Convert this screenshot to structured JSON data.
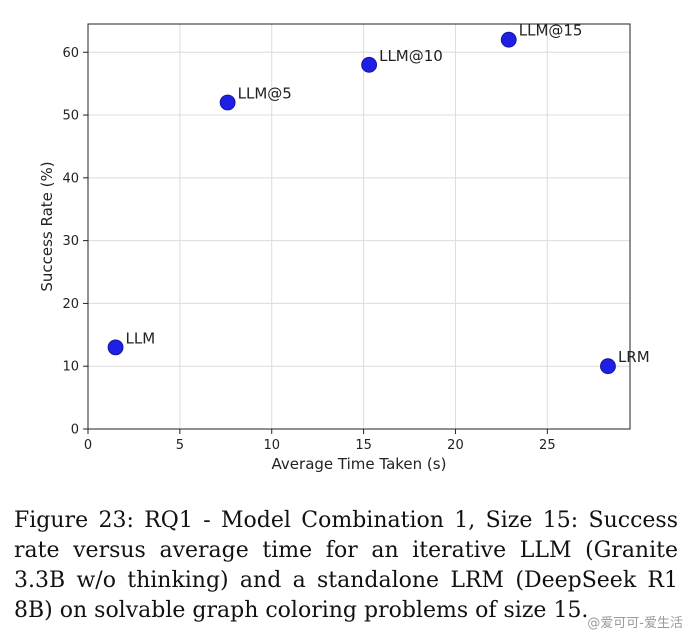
{
  "chart_data": {
    "type": "scatter",
    "title": "",
    "xlabel": "Average Time Taken (s)",
    "ylabel": "Success Rate (%)",
    "xlim": [
      0,
      29.5
    ],
    "ylim": [
      0,
      64.5
    ],
    "x_ticks": [
      0,
      5,
      10,
      15,
      20,
      25
    ],
    "y_ticks": [
      0,
      10,
      20,
      30,
      40,
      50,
      60
    ],
    "grid": true,
    "marker_color": "#1f1fe6",
    "points": [
      {
        "label": "LLM",
        "x": 1.5,
        "y": 13
      },
      {
        "label": "LLM@5",
        "x": 7.6,
        "y": 52
      },
      {
        "label": "LLM@10",
        "x": 15.3,
        "y": 58
      },
      {
        "label": "LLM@15",
        "x": 22.9,
        "y": 62
      },
      {
        "label": "LRM",
        "x": 28.3,
        "y": 10
      }
    ]
  },
  "caption": "Figure 23: RQ1 - Model Combination 1, Size 15: Success rate versus average time for an iterative LLM (Granite 3.3B w/o thinking) and a standalone LRM (DeepSeek R1 8B) on solvable graph coloring problems of size 15.",
  "watermark": "@爱可可-爱生活"
}
